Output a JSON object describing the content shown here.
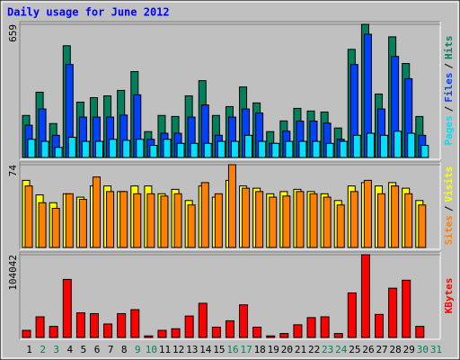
{
  "chart_data": {
    "type": "bar",
    "title": "Daily usage for June 2012",
    "legend_separator": "/",
    "categories": [
      "1",
      "2",
      "3",
      "4",
      "5",
      "6",
      "7",
      "8",
      "9",
      "10",
      "11",
      "12",
      "13",
      "14",
      "15",
      "16",
      "17",
      "18",
      "19",
      "20",
      "21",
      "22",
      "23",
      "24",
      "25",
      "26",
      "27",
      "28",
      "29",
      "30",
      "31"
    ],
    "category_colors": [
      "#000000",
      "#00805c",
      "#00805c",
      "#000000",
      "#000000",
      "#000000",
      "#000000",
      "#000000",
      "#00805c",
      "#00805c",
      "#000000",
      "#000000",
      "#000000",
      "#000000",
      "#000000",
      "#00805c",
      "#00805c",
      "#000000",
      "#000000",
      "#000000",
      "#000000",
      "#000000",
      "#00805c",
      "#00805c",
      "#000000",
      "#000000",
      "#000000",
      "#000000",
      "#000000",
      "#00805c",
      "#00805c"
    ],
    "panels": [
      {
        "ylim": [
          0,
          659
        ],
        "yticks": [
          659
        ],
        "series": [
          {
            "name": "Hits",
            "color": "#00805c",
            "values": [
              208,
              323,
              168,
              553,
              274,
              296,
              305,
              332,
              425,
              128,
              208,
              203,
              305,
              380,
              208,
              252,
              349,
              270,
              128,
              181,
              243,
              230,
              225,
              146,
              535,
              659,
              314,
              597,
              465,
              203,
              0
            ]
          },
          {
            "name": "Files",
            "color": "#0040ff",
            "values": [
              160,
              240,
              110,
              460,
              200,
              200,
              200,
              210,
              310,
              90,
              120,
              120,
              200,
              260,
              110,
              200,
              240,
              220,
              70,
              130,
              180,
              180,
              170,
              90,
              460,
              610,
              240,
              500,
              390,
              110,
              0
            ]
          },
          {
            "name": "Pages",
            "color": "#00e0ff",
            "values": [
              90,
              80,
              50,
              100,
              80,
              80,
              90,
              85,
              90,
              60,
              90,
              70,
              70,
              70,
              80,
              80,
              110,
              80,
              70,
              80,
              80,
              80,
              70,
              80,
              110,
              120,
              110,
              130,
              120,
              60,
              0
            ]
          }
        ]
      },
      {
        "ylim": [
          0,
          74
        ],
        "yticks": [
          74
        ],
        "series": [
          {
            "name": "Visits",
            "color": "#ffff00",
            "values": [
              60,
              47,
              40,
              48,
              45,
              55,
              55,
              50,
              55,
              55,
              48,
              52,
              42,
              55,
              45,
              60,
              55,
              53,
              48,
              50,
              52,
              50,
              48,
              42,
              55,
              58,
              55,
              58,
              53,
              42,
              0
            ]
          },
          {
            "name": "Sites",
            "color": "#ff8000",
            "values": [
              55,
              40,
              35,
              48,
              43,
              63,
              50,
              50,
              48,
              48,
              46,
              48,
              38,
              58,
              48,
              74,
              53,
              50,
              45,
              46,
              50,
              48,
              45,
              38,
              50,
              60,
              48,
              55,
              48,
              38,
              0
            ]
          }
        ]
      },
      {
        "ylim": [
          0,
          104042
        ],
        "yticks": [
          104042
        ],
        "series": [
          {
            "name": "KBytes",
            "color": "#ff0000",
            "values": [
              9000,
              26000,
              14000,
              73000,
              31000,
              30000,
              17000,
              30000,
              35000,
              2000,
              9000,
              11000,
              27000,
              43000,
              13000,
              21000,
              41000,
              13000,
              2000,
              5000,
              16000,
              25000,
              26000,
              5000,
              56000,
              104042,
              29000,
              62000,
              72000,
              14000,
              0
            ]
          }
        ]
      }
    ]
  }
}
